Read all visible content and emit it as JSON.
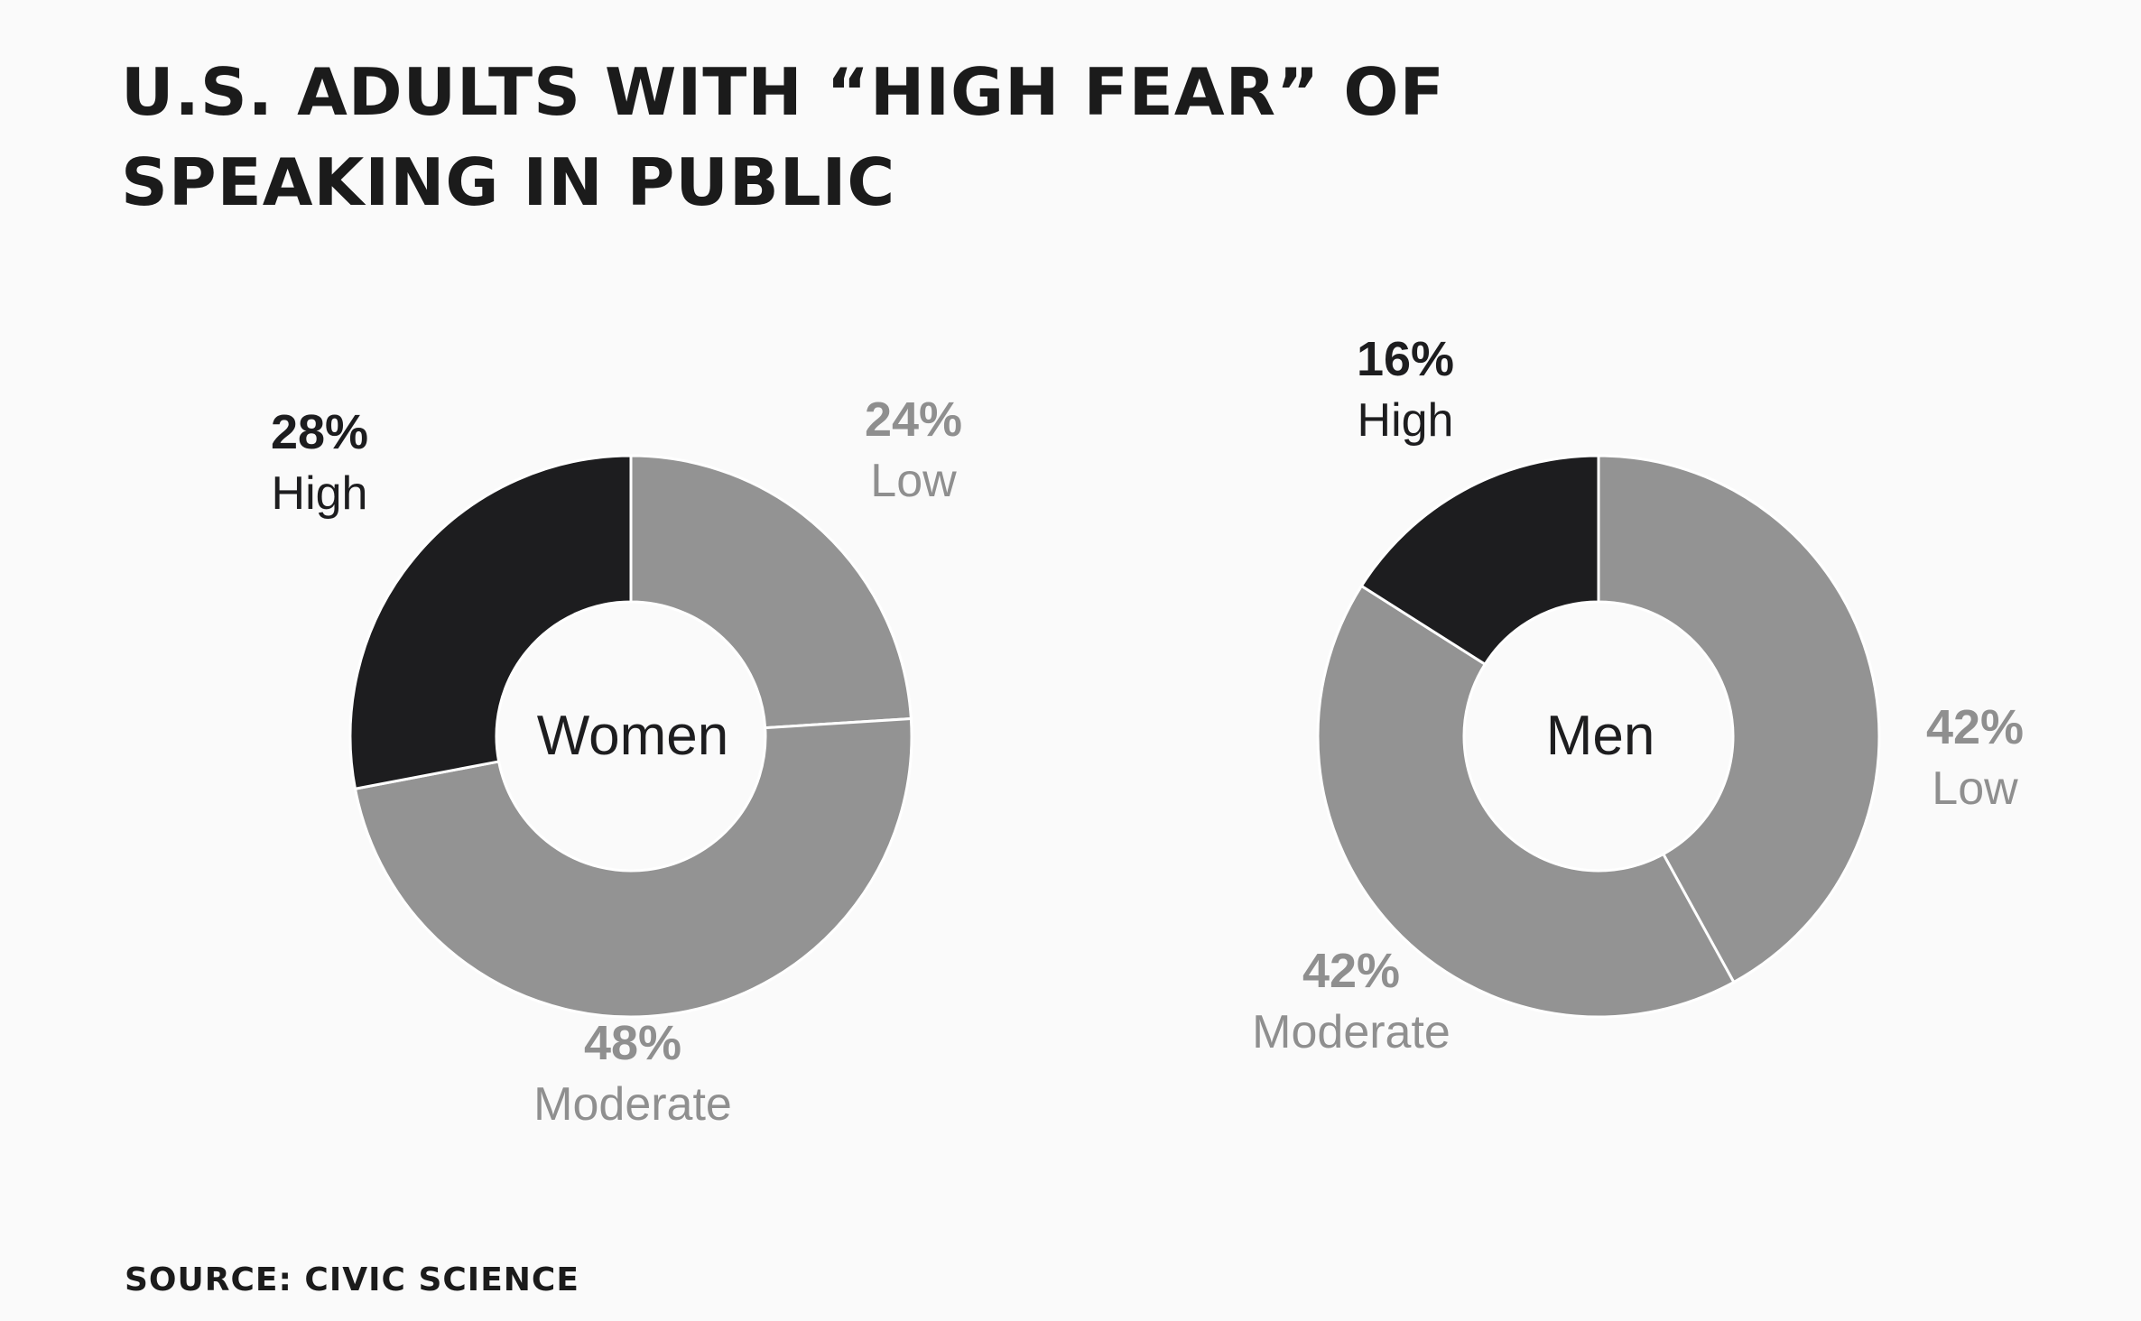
{
  "title": {
    "line1": "U.S. ADULTS WITH “HIGH FEAR” OF",
    "line2": "SPEAKING IN PUBLIC"
  },
  "source": "SOURCE: CIVIC SCIENCE",
  "colors": {
    "high": "#1d1d1f",
    "other": "#939393",
    "label_dark": "#1d1d1f",
    "label_gray": "#8f8f8f",
    "divider": "#ffffff"
  },
  "chart_data": [
    {
      "type": "pie",
      "donut": true,
      "center_label": "Women",
      "slices": [
        {
          "label": "Low",
          "value": 24,
          "value_text": "24%",
          "color": "#939393"
        },
        {
          "label": "Moderate",
          "value": 48,
          "value_text": "48%",
          "color": "#939393"
        },
        {
          "label": "High",
          "value": 28,
          "value_text": "28%",
          "color": "#1d1d1f"
        }
      ]
    },
    {
      "type": "pie",
      "donut": true,
      "center_label": "Men",
      "slices": [
        {
          "label": "Low",
          "value": 42,
          "value_text": "42%",
          "color": "#939393"
        },
        {
          "label": "Moderate",
          "value": 42,
          "value_text": "42%",
          "color": "#939393"
        },
        {
          "label": "High",
          "value": 16,
          "value_text": "16%",
          "color": "#1d1d1f"
        }
      ]
    }
  ]
}
